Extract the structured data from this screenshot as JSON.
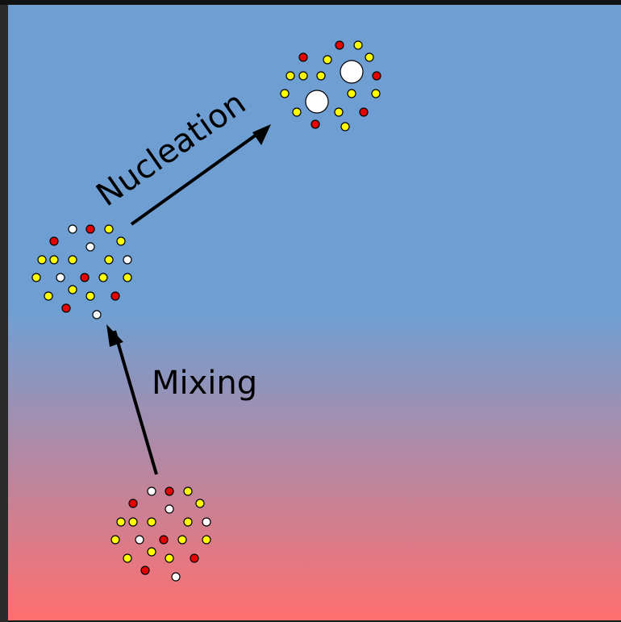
{
  "labels": {
    "mixing": "Mixing",
    "nucleation": "Nucleation"
  },
  "colors": {
    "background_top": "#6f9fd2",
    "background_mid": "#6f9fd2",
    "background_bottom": "#ff6f6f",
    "particle_red": "#e60000",
    "particle_yellow": "#ffff00",
    "particle_white": "#ffffff",
    "stroke": "#000000"
  },
  "clusters": [
    {
      "stage": "initial",
      "particle_count": 23
    },
    {
      "stage": "mixed",
      "particle_count": 24
    },
    {
      "stage": "nucleated",
      "particle_count": 18,
      "nuclei_count": 2
    }
  ]
}
